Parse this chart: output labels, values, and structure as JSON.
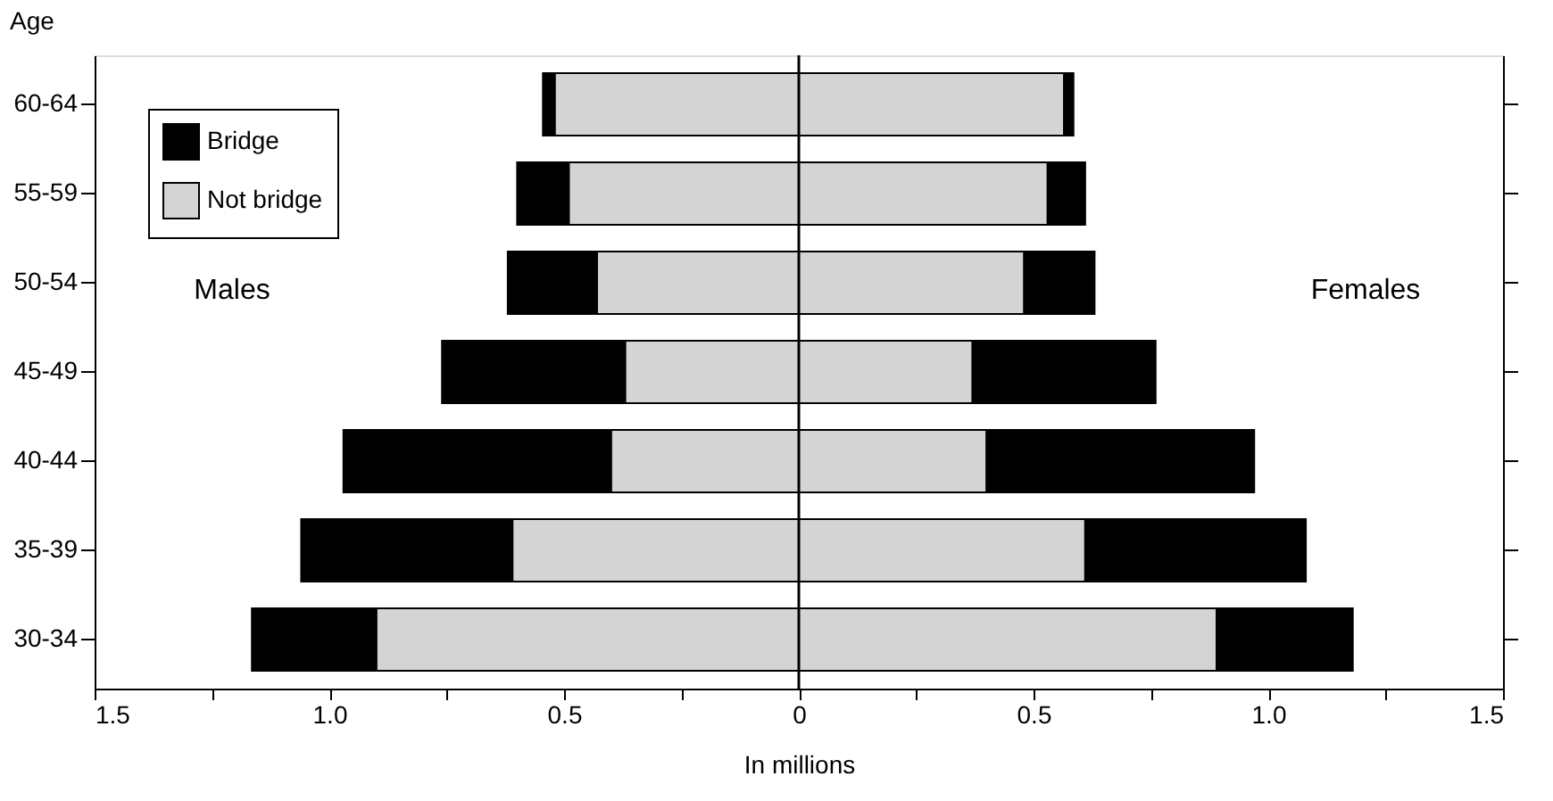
{
  "chart_data": {
    "type": "bar",
    "orientation": "horizontal",
    "stacked": true,
    "categories": [
      "60-64",
      "55-59",
      "50-54",
      "45-49",
      "40-44",
      "35-39",
      "30-34"
    ],
    "series": [
      {
        "name": "Not bridge",
        "color": "#d4d4d4",
        "values": [
          -0.52,
          -0.49,
          -0.43,
          -0.37,
          -0.4,
          -0.61,
          -0.9
        ]
      },
      {
        "name": "Bridge",
        "color": "#000000",
        "values": [
          -0.025,
          -0.11,
          -0.19,
          -0.39,
          -0.57,
          -0.45,
          -0.265
        ]
      },
      {
        "color": "#d4d4d4",
        "values": [
          0.565,
          0.53,
          0.48,
          0.37,
          0.4,
          0.61,
          0.89
        ]
      },
      {
        "color": "#000000",
        "values": [
          0.02,
          0.08,
          0.15,
          0.39,
          0.57,
          0.47,
          0.29
        ]
      }
    ],
    "xlabel": "In millions",
    "ylabel": "Age",
    "xlim": [
      -1.5,
      1.5
    ],
    "xticks": [
      {
        "value": -1.5,
        "label": "1.5"
      },
      {
        "value": -1.25,
        "label": null
      },
      {
        "value": -1.0,
        "label": "1.0"
      },
      {
        "value": -0.75,
        "label": null
      },
      {
        "value": -0.5,
        "label": "0.5"
      },
      {
        "value": -0.25,
        "label": null
      },
      0,
      {
        "value": 0.25,
        "label": null
      },
      0.5,
      {
        "value": 0.75,
        "label": null
      },
      {
        "value": 1.0,
        "label": "1.0"
      },
      {
        "value": 1.25,
        "label": null
      },
      1.5
    ],
    "ref_lines": [
      {
        "axis": "x",
        "value": 0
      }
    ],
    "annotations": [
      "Males",
      "Females"
    ],
    "legend": "top left",
    "grid": false
  }
}
